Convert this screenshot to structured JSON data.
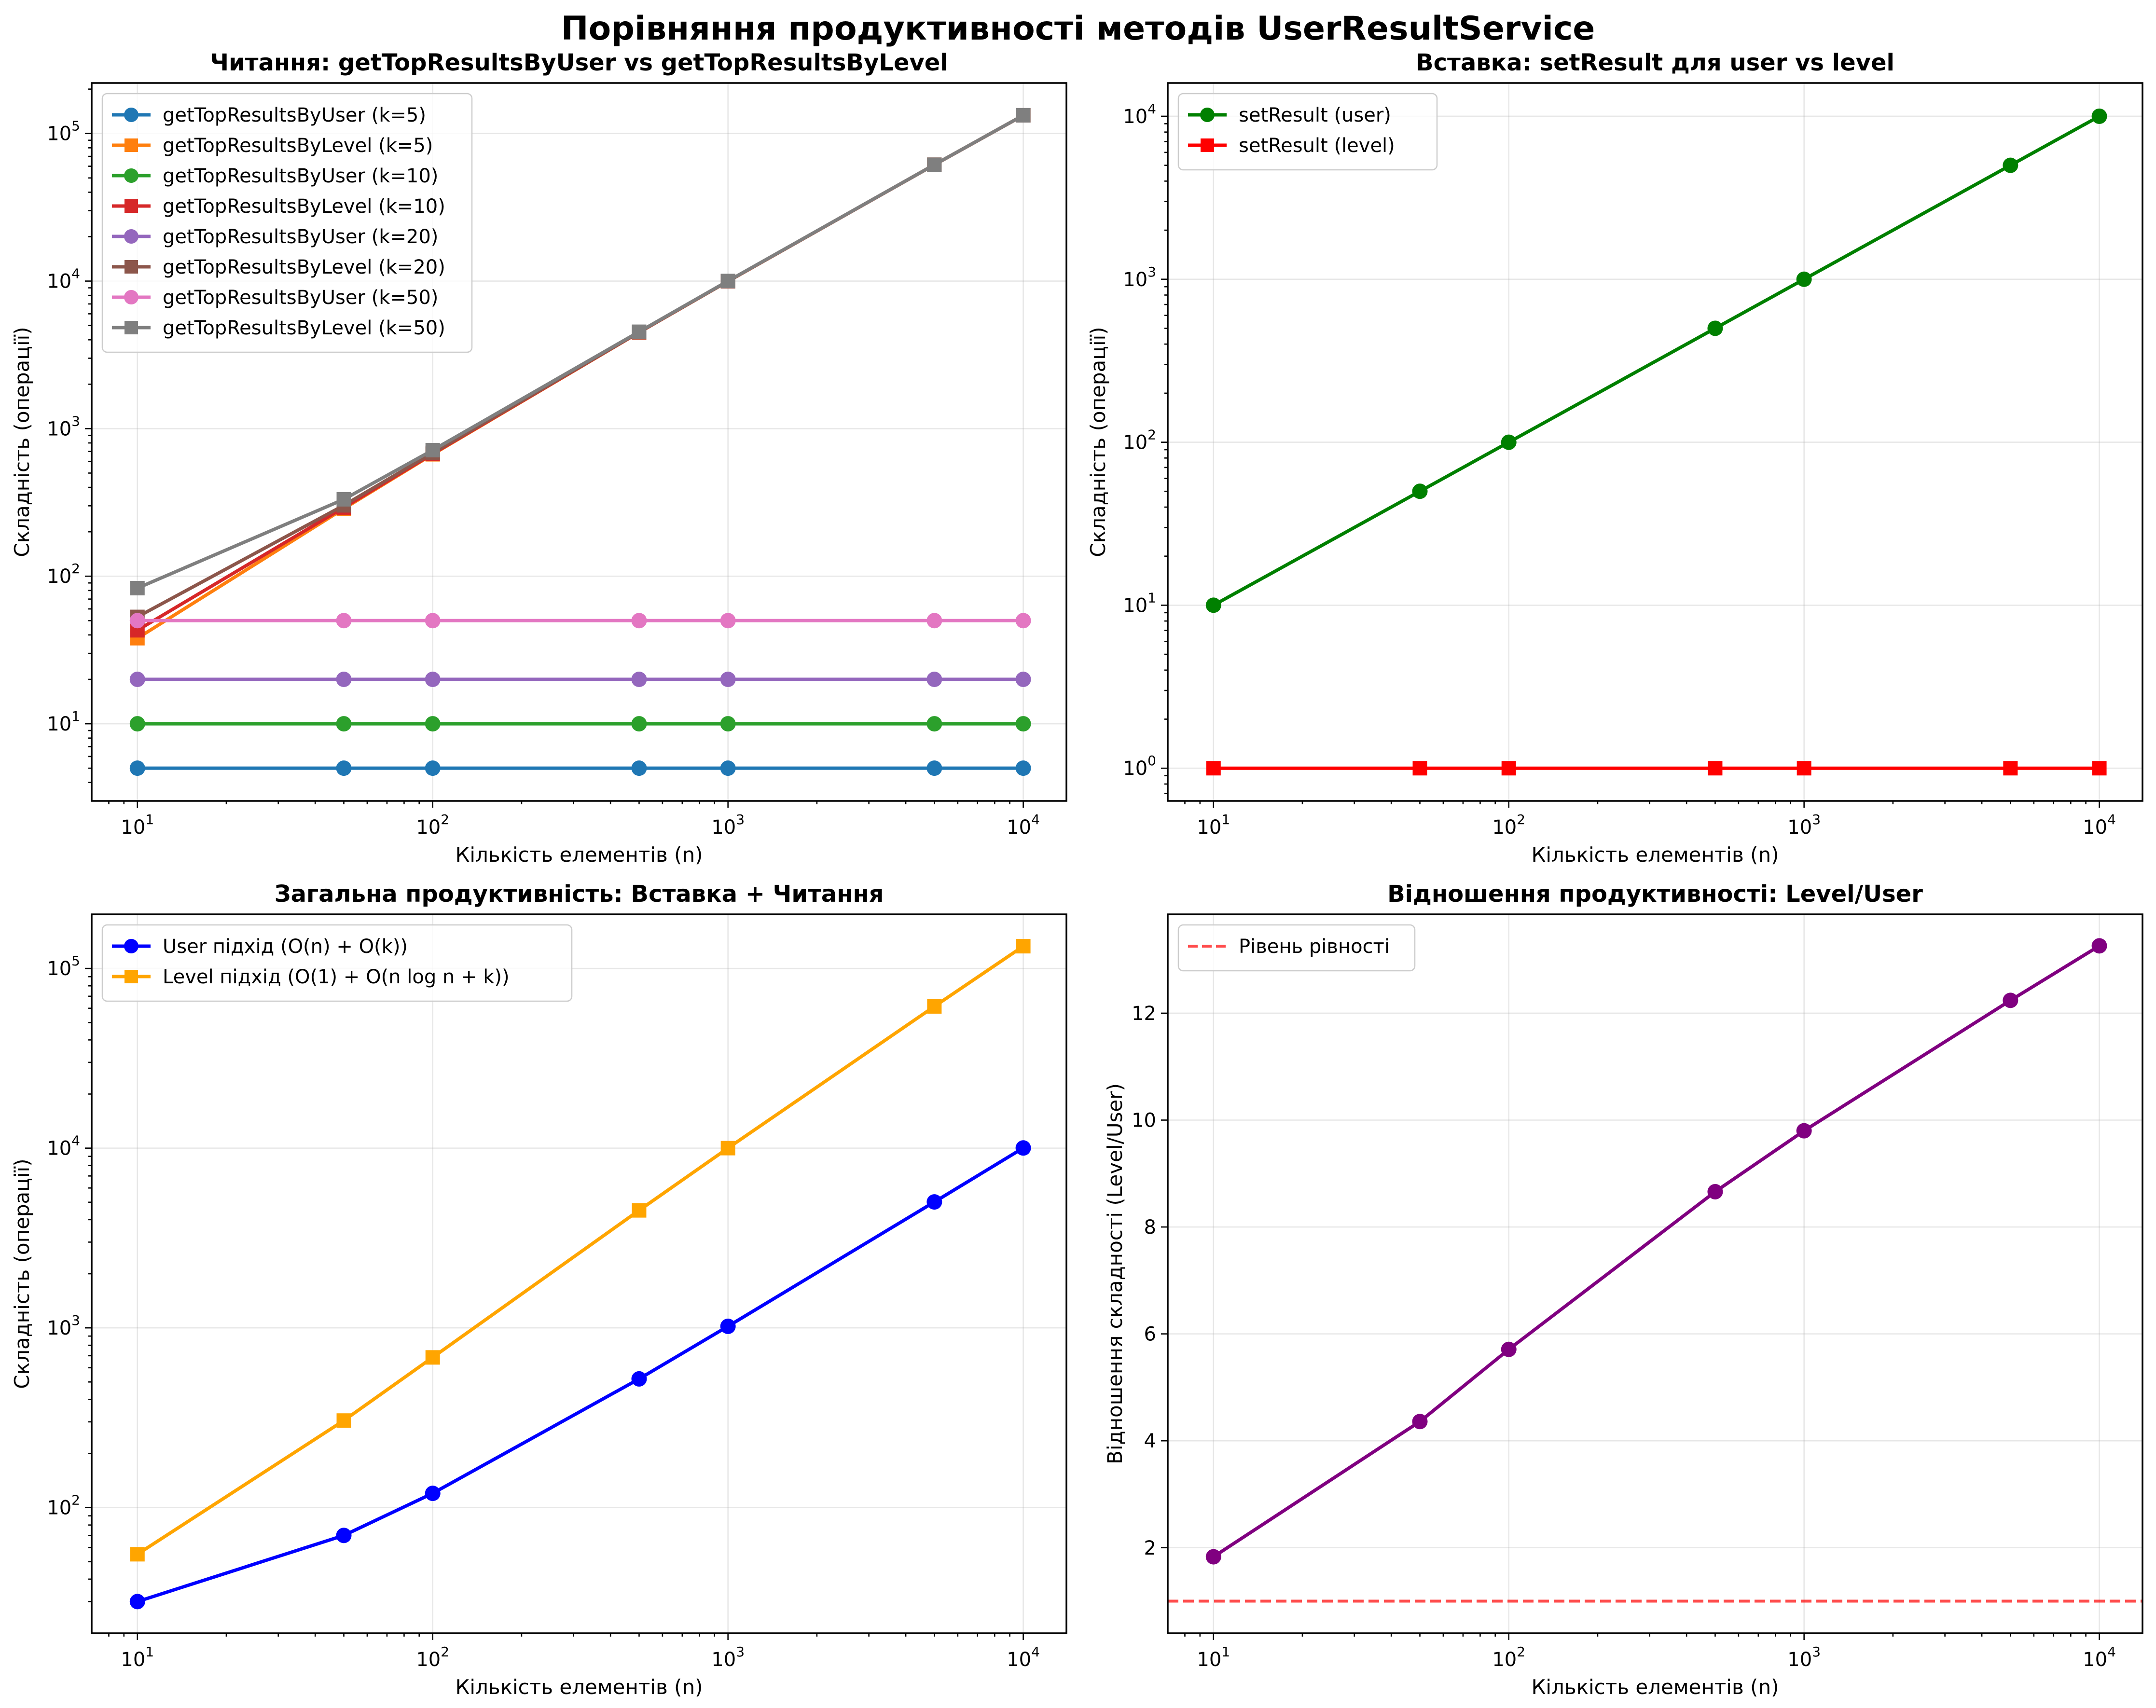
{
  "figure": {
    "suptitle": "Порівняння продуктивності методів UserResultService"
  },
  "chart_data": [
    {
      "type": "line",
      "title": "Читання: getTopResultsByUser vs getTopResultsByLevel",
      "xlabel": "Кількість елементів (n)",
      "ylabel": "Складність (операції)",
      "xscale": "log",
      "yscale": "log",
      "xlim": [
        7,
        14000
      ],
      "ylim": [
        3,
        220000
      ],
      "xticks": [
        10,
        100,
        1000,
        10000
      ],
      "yticks": [
        10,
        100,
        1000,
        10000,
        100000
      ],
      "grid": true,
      "legend_position": "top-left",
      "x": [
        10,
        50,
        100,
        500,
        1000,
        5000,
        10000
      ],
      "series": [
        {
          "name": "getTopResultsByUser (k=5)",
          "color": "#1f77b4",
          "marker": "circle",
          "values": [
            5,
            5,
            5,
            5,
            5,
            5,
            5
          ]
        },
        {
          "name": "getTopResultsByLevel (k=5)",
          "color": "#ff7f0e",
          "marker": "square",
          "values": [
            38,
            287,
            670,
            4490,
            9970,
            61440,
            132880
          ]
        },
        {
          "name": "getTopResultsByUser (k=10)",
          "color": "#2ca02c",
          "marker": "circle",
          "values": [
            10,
            10,
            10,
            10,
            10,
            10,
            10
          ]
        },
        {
          "name": "getTopResultsByLevel (k=10)",
          "color": "#d62728",
          "marker": "square",
          "values": [
            43,
            292,
            675,
            4495,
            9975,
            61445,
            132885
          ]
        },
        {
          "name": "getTopResultsByUser (k=20)",
          "color": "#9467bd",
          "marker": "circle",
          "values": [
            20,
            20,
            20,
            20,
            20,
            20,
            20
          ]
        },
        {
          "name": "getTopResultsByLevel (k=20)",
          "color": "#8c564b",
          "marker": "square",
          "values": [
            53,
            302,
            685,
            4505,
            9985,
            61455,
            132895
          ]
        },
        {
          "name": "getTopResultsByUser (k=50)",
          "color": "#e377c2",
          "marker": "circle",
          "values": [
            50,
            50,
            50,
            50,
            50,
            50,
            50
          ]
        },
        {
          "name": "getTopResultsByLevel (k=50)",
          "color": "#7f7f7f",
          "marker": "square",
          "values": [
            83,
            332,
            715,
            4535,
            10015,
            61485,
            132925
          ]
        }
      ]
    },
    {
      "type": "line",
      "title": "Вставка: setResult для user vs level",
      "xlabel": "Кількість елементів (n)",
      "ylabel": "Складність (операції)",
      "xscale": "log",
      "yscale": "log",
      "xlim": [
        7,
        14000
      ],
      "ylim": [
        0.63,
        16000
      ],
      "xticks": [
        10,
        100,
        1000,
        10000
      ],
      "yticks": [
        1,
        10,
        100,
        1000,
        10000
      ],
      "grid": true,
      "legend_position": "top-left",
      "x": [
        10,
        50,
        100,
        500,
        1000,
        5000,
        10000
      ],
      "series": [
        {
          "name": "setResult (user)",
          "color": "#008000",
          "marker": "circle",
          "values": [
            10,
            50,
            100,
            500,
            1000,
            5000,
            10000
          ]
        },
        {
          "name": "setResult (level)",
          "color": "#ff0000",
          "marker": "square",
          "values": [
            1,
            1,
            1,
            1,
            1,
            1,
            1
          ]
        }
      ]
    },
    {
      "type": "line",
      "title": "Загальна продуктивність: Вставка + Читання",
      "xlabel": "Кількість елементів (n)",
      "ylabel": "Складність (операції)",
      "xscale": "log",
      "yscale": "log",
      "xlim": [
        7,
        14000
      ],
      "ylim": [
        20,
        200000
      ],
      "xticks": [
        10,
        100,
        1000,
        10000
      ],
      "yticks": [
        100,
        1000,
        10000,
        100000
      ],
      "grid": true,
      "legend_position": "top-left",
      "x": [
        10,
        50,
        100,
        500,
        1000,
        5000,
        10000
      ],
      "series": [
        {
          "name": "User підхід (O(n) + O(k))",
          "color": "#0000ff",
          "marker": "circle",
          "values": [
            30,
            70,
            120,
            520,
            1020,
            5020,
            10020
          ]
        },
        {
          "name": "Level підхід (O(1) + O(n log n + k))",
          "color": "#ffa500",
          "marker": "square",
          "values": [
            55,
            305,
            685,
            4505,
            10000,
            61450,
            132890
          ]
        }
      ]
    },
    {
      "type": "line",
      "title": "Відношення продуктивності: Level/User",
      "xlabel": "Кількість елементів (n)",
      "ylabel": "Відношення складності (Level/User)",
      "xscale": "log",
      "yscale": "linear",
      "xlim": [
        7,
        14000
      ],
      "ylim": [
        0.4,
        13.85
      ],
      "xticks": [
        10,
        100,
        1000,
        10000
      ],
      "yticks": [
        2,
        4,
        6,
        8,
        10,
        12
      ],
      "grid": true,
      "legend_position": "top-left",
      "x": [
        10,
        50,
        100,
        500,
        1000,
        5000,
        10000
      ],
      "series": [
        {
          "name": "",
          "color": "#800080",
          "marker": "circle",
          "values": [
            1.83,
            4.36,
            5.71,
            8.66,
            9.8,
            12.24,
            13.26
          ]
        }
      ],
      "reference_line": {
        "name": "Рівень рівності",
        "y": 1,
        "color": "#ff0000",
        "style": "dashed"
      }
    }
  ]
}
